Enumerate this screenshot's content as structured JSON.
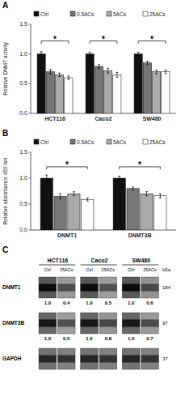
{
  "chart_data": [
    {
      "type": "bar",
      "title": "A",
      "categories": [
        "HCT116",
        "Caco2",
        "SW480"
      ],
      "series": [
        {
          "name": "Ctrl",
          "color": "#111111",
          "values": [
            1.0,
            1.0,
            1.0
          ],
          "errors": [
            0.04,
            0.03,
            0.03
          ]
        },
        {
          "name": "0.5ACs",
          "color": "#777777",
          "values": [
            0.7,
            0.79,
            0.85
          ],
          "errors": [
            0.04,
            0.03,
            0.03
          ]
        },
        {
          "name": "5ACs",
          "color": "#aaaaaa",
          "values": [
            0.65,
            0.72,
            0.7
          ],
          "errors": [
            0.03,
            0.04,
            0.03
          ]
        },
        {
          "name": "25ACs",
          "color": "#ffffff",
          "values": [
            0.6,
            0.65,
            0.7
          ],
          "errors": [
            0.03,
            0.04,
            0.03
          ]
        }
      ],
      "ylabel": "Relative DNMT activity",
      "ylim": [
        0.0,
        1.5
      ],
      "yticks": [
        {
          "value": 0.0,
          "label": "0.0"
        },
        0.5,
        {
          "value": 1.0,
          "label": "1.0"
        },
        1.5
      ],
      "legend": "top",
      "annotations": [
        {
          "text": "*",
          "category": "HCT116",
          "y": 1.22,
          "y_low": 1.17
        },
        {
          "text": "*",
          "category": "Caco2",
          "y": 1.22,
          "y_low": 1.17
        },
        {
          "text": "*",
          "category": "SW480",
          "y": 1.22,
          "y_low": 1.17
        }
      ]
    },
    {
      "type": "bar",
      "title": "B",
      "categories": [
        "DNMT1",
        "DNMT3B"
      ],
      "series": [
        {
          "name": "Ctrl",
          "color": "#111111",
          "values": [
            1.0,
            1.0
          ],
          "errors": [
            0.06,
            0.04
          ]
        },
        {
          "name": "0.5ACs",
          "color": "#777777",
          "values": [
            0.65,
            0.8
          ],
          "errors": [
            0.05,
            0.03
          ]
        },
        {
          "name": "5ACs",
          "color": "#aaaaaa",
          "values": [
            0.7,
            0.7
          ],
          "errors": [
            0.04,
            0.04
          ]
        },
        {
          "name": "25ACs",
          "color": "#ffffff",
          "values": [
            0.59,
            0.66
          ],
          "errors": [
            0.03,
            0.04
          ]
        }
      ],
      "ylabel": "Relative absorbance 450 nm",
      "ylim": [
        0.0,
        1.5
      ],
      "yticks": [
        {
          "value": 0.0,
          "label": "0.0"
        },
        0.5,
        {
          "value": 1.0,
          "label": "1.0"
        },
        1.5
      ],
      "legend": "top",
      "annotations": [
        {
          "text": "*",
          "category": "DNMT1",
          "y": 1.22,
          "y_low": 1.17
        },
        {
          "text": "*",
          "category": "DNMT3B",
          "y": 1.22,
          "y_low": 1.17
        }
      ]
    },
    {
      "type": "blot",
      "title": "C",
      "groups": [
        "HCT116",
        "Caco2",
        "SW480"
      ],
      "categories": [
        "Ctrl",
        "25ACs",
        "Ctrl",
        "25ACs",
        "Ctrl",
        "25ACs"
      ],
      "unit_label": "kDa",
      "data_labels": true,
      "series": [
        {
          "name": "DNMT1",
          "kda": 184,
          "values": [
            1.0,
            0.4,
            1.0,
            0.5,
            1.0,
            0.6
          ],
          "value_labels": [
            "1.0",
            "0.4",
            "1.0",
            "0.5",
            "1.0",
            "0.6"
          ],
          "colors": [
            "#595959",
            "#999999",
            "#595959",
            "#9e9e9e",
            "#595959",
            "#949494"
          ]
        },
        {
          "name": "DNMT3B",
          "kda": 97,
          "values": [
            1.0,
            0.5,
            1.0,
            0.8,
            1.0,
            0.7
          ],
          "value_labels": [
            "1.0",
            "0.5",
            "1.0",
            "0.8",
            "1.0",
            "0.7"
          ],
          "colors": [
            "#666666",
            "#9e9e9e",
            "#666666",
            "#949494",
            "#666666",
            "#999999"
          ]
        },
        {
          "name": "GAPDH",
          "kda": 37,
          "colors": [
            "#737373",
            "#808080",
            "#737373",
            "#808080",
            "#737373",
            "#808080"
          ]
        }
      ]
    }
  ]
}
